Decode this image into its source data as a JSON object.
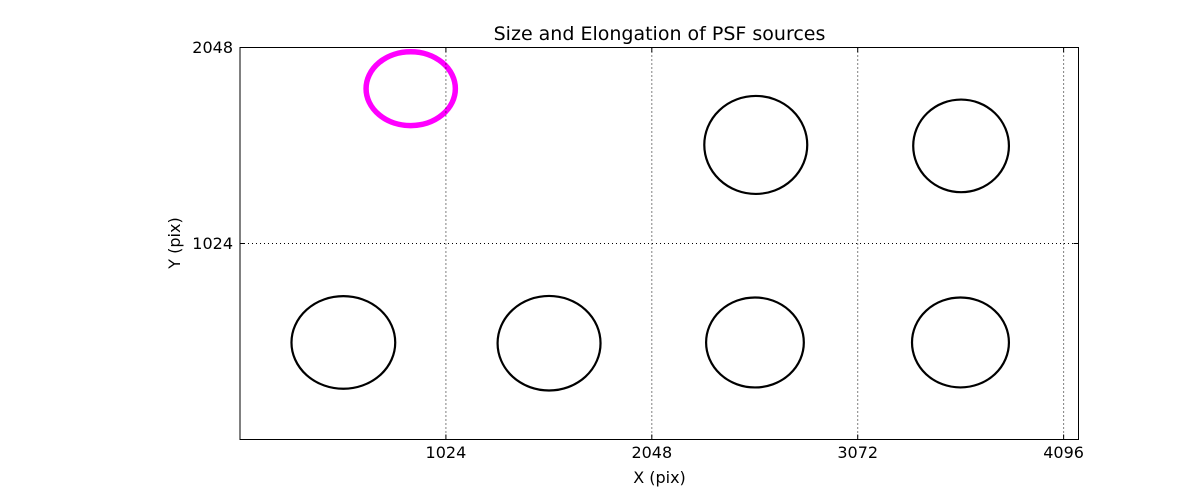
{
  "chart_data": {
    "type": "scatter",
    "marker_style": "ellipse-outline",
    "title": "Size and Elongation of PSF sources",
    "xlabel": "X (pix)",
    "ylabel": "Y (pix)",
    "xlim": [
      0,
      4170
    ],
    "ylim": [
      0,
      2048
    ],
    "xticks": [
      1024,
      2048,
      3072,
      4096
    ],
    "yticks": [
      1024,
      2048
    ],
    "grid": {
      "visible": true,
      "style": "dotted",
      "color": "#000000"
    },
    "axes_color": "#000000",
    "background_color": "#FFFFFF",
    "colors": {
      "default_source": "#000000",
      "highlighted_source": "#FF00FF"
    },
    "legend": null,
    "sources": [
      {
        "x": 849,
        "y": 1833,
        "rx": 222,
        "ry": 193,
        "color": "#FF00FF",
        "line_width": 5.5,
        "highlighted": true
      },
      {
        "x": 2565,
        "y": 1539,
        "rx": 256,
        "ry": 256,
        "color": "#000000",
        "line_width": 2.2,
        "highlighted": false
      },
      {
        "x": 3586,
        "y": 1534,
        "rx": 238,
        "ry": 242,
        "color": "#000000",
        "line_width": 2.2,
        "highlighted": false
      },
      {
        "x": 514,
        "y": 507,
        "rx": 258,
        "ry": 242,
        "color": "#000000",
        "line_width": 2.2,
        "highlighted": false
      },
      {
        "x": 1537,
        "y": 503,
        "rx": 256,
        "ry": 247,
        "color": "#000000",
        "line_width": 2.2,
        "highlighted": false
      },
      {
        "x": 2561,
        "y": 507,
        "rx": 243,
        "ry": 235,
        "color": "#000000",
        "line_width": 2.2,
        "highlighted": false
      },
      {
        "x": 3583,
        "y": 507,
        "rx": 241,
        "ry": 235,
        "color": "#000000",
        "line_width": 2.2,
        "highlighted": false
      }
    ]
  }
}
